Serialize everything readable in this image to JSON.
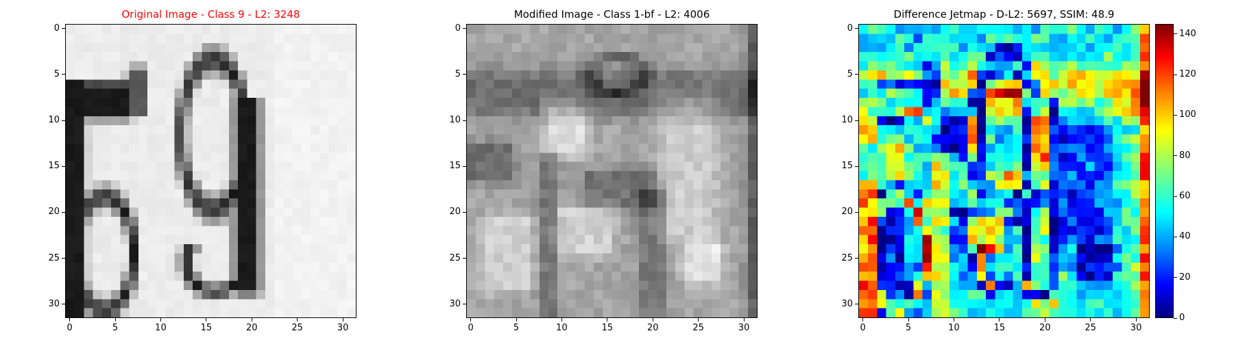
{
  "chart_data": [
    {
      "type": "heatmap",
      "title": "Original Image - Class 9 - L2: 3248",
      "title_color": "#ff0000",
      "colormap": "gray",
      "xlim": [
        -0.5,
        31.5
      ],
      "ylim": [
        31.5,
        -0.5
      ],
      "xticks": [
        "0",
        "5",
        "10",
        "15",
        "20",
        "25",
        "30"
      ],
      "yticks": [
        "0",
        "5",
        "10",
        "15",
        "20",
        "25",
        "30"
      ]
    },
    {
      "type": "heatmap",
      "title": "Modified Image - Class 1-bf - L2: 4006",
      "title_color": "#000000",
      "colormap": "gray",
      "xlim": [
        -0.5,
        31.5
      ],
      "ylim": [
        31.5,
        -0.5
      ],
      "xticks": [
        "0",
        "5",
        "10",
        "15",
        "20",
        "25",
        "30"
      ],
      "yticks": [
        "0",
        "5",
        "10",
        "15",
        "20",
        "25",
        "30"
      ]
    },
    {
      "type": "heatmap",
      "title": "Difference Jetmap - D-L2: 5697, SSIM: 48.9",
      "title_color": "#000000",
      "colormap": "jet",
      "xlim": [
        -0.5,
        31.5
      ],
      "ylim": [
        31.5,
        -0.5
      ],
      "xticks": [
        "0",
        "5",
        "10",
        "15",
        "20",
        "25",
        "30"
      ],
      "yticks": [
        "0",
        "5",
        "10",
        "15",
        "20",
        "25",
        "30"
      ],
      "colorbar": {
        "min": 0,
        "max": 145,
        "ticks": [
          "0",
          "20",
          "40",
          "60",
          "80",
          "100",
          "120",
          "140"
        ]
      }
    }
  ]
}
